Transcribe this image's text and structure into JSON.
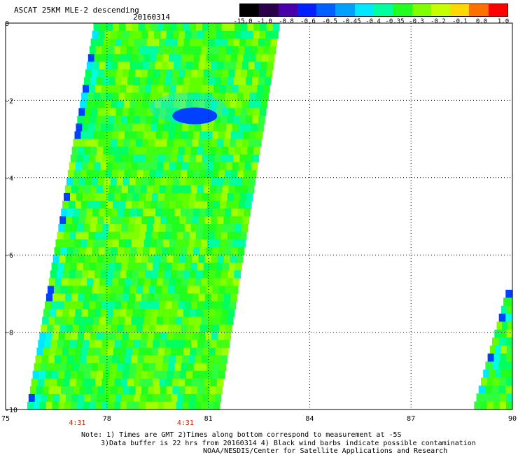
{
  "header": {
    "title": "ASCAT 25KM MLE-2 descending",
    "date": "20160314"
  },
  "colorbar": {
    "labels": [
      "-15.0",
      "-1.0",
      "-0.8",
      "-0.6",
      "-0.5",
      "-0.45",
      "-0.4",
      "-0.35",
      "-0.3",
      "-0.2",
      "-0.1",
      "0.0",
      "1.0"
    ],
    "colors": [
      "#000000",
      "#2a0048",
      "#4a00a8",
      "#0020ff",
      "#0060ff",
      "#00a0ff",
      "#00e8ff",
      "#00ffa0",
      "#20ff20",
      "#80ff00",
      "#c8ff00",
      "#ffd800",
      "#ff7000",
      "#ff0000"
    ]
  },
  "axes": {
    "x_ticks": [
      "75",
      "78",
      "81",
      "84",
      "87",
      "90"
    ],
    "y_ticks": [
      "0",
      "-2",
      "-4",
      "-6",
      "-8",
      "-10"
    ],
    "x_range": [
      75,
      90
    ],
    "y_range": [
      -10,
      0
    ]
  },
  "time_labels": [
    {
      "text": "4:31",
      "lon": 77.1
    },
    {
      "text": "4:31",
      "lon": 80.3
    }
  ],
  "footer": {
    "line1": "Note: 1) Times are GMT 2)Times along bottom correspond to measurement at -5S",
    "line2": "3)Data buffer is 22 hrs from 20160314 4) Black wind barbs indicate possible contamination",
    "line3": "NOAA/NESDIS/Center for Satellite Applications and Research"
  },
  "swaths": [
    {
      "name": "main-swath",
      "top_left": [
        77.6,
        0
      ],
      "top_right": [
        83.1,
        0
      ],
      "bottom_left": [
        75.6,
        -10
      ],
      "bottom_right": [
        81.3,
        -10
      ]
    },
    {
      "name": "east-swath",
      "top_left": [
        89.8,
        -6.9
      ],
      "top_right": [
        90,
        -6.9
      ],
      "bottom_left": [
        88.8,
        -10
      ],
      "bottom_right": [
        90,
        -10
      ]
    }
  ]
}
